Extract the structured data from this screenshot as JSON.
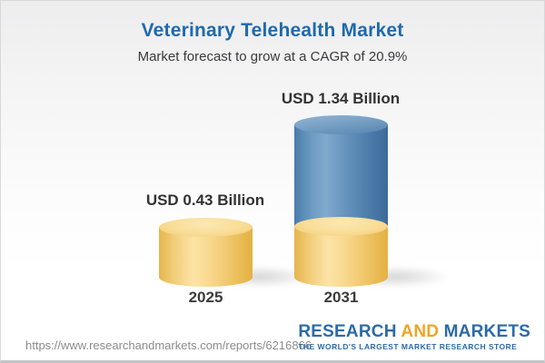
{
  "header": {
    "title": "Veterinary Telehealth Market",
    "subtitle": "Market forecast to grow at a CAGR of 20.9%"
  },
  "chart_data": {
    "type": "bar",
    "style": "3d-cylinder-stacked",
    "categories": [
      "2025",
      "2031"
    ],
    "values": [
      0.43,
      1.34
    ],
    "value_labels": [
      "USD 0.43 Billion",
      "USD 1.34 Billion"
    ],
    "unit": "USD Billion",
    "title": "Veterinary Telehealth Market",
    "subtitle": "Market forecast to grow at a CAGR of 20.9%",
    "cagr_percent": 20.9,
    "ylim": [
      0,
      1.34
    ],
    "grid": false,
    "legend": "none",
    "colors": {
      "bar_2025": "#f5d282",
      "bar_2031_base": "#f5d282",
      "bar_2031_growth": "#4e80af"
    }
  },
  "footer": {
    "url": "https://www.researchandmarkets.com/reports/6216866",
    "logo": {
      "research": "RESEARCH",
      "and": "AND",
      "markets": "MARKETS",
      "tagline": "THE WORLD'S LARGEST MARKET RESEARCH STORE"
    }
  },
  "colors": {
    "title_blue": "#1f6aad",
    "logo_blue": "#2b6ba7",
    "logo_orange": "#f0a526",
    "text_dark": "#333333",
    "url_gray": "#8c8c8c"
  }
}
